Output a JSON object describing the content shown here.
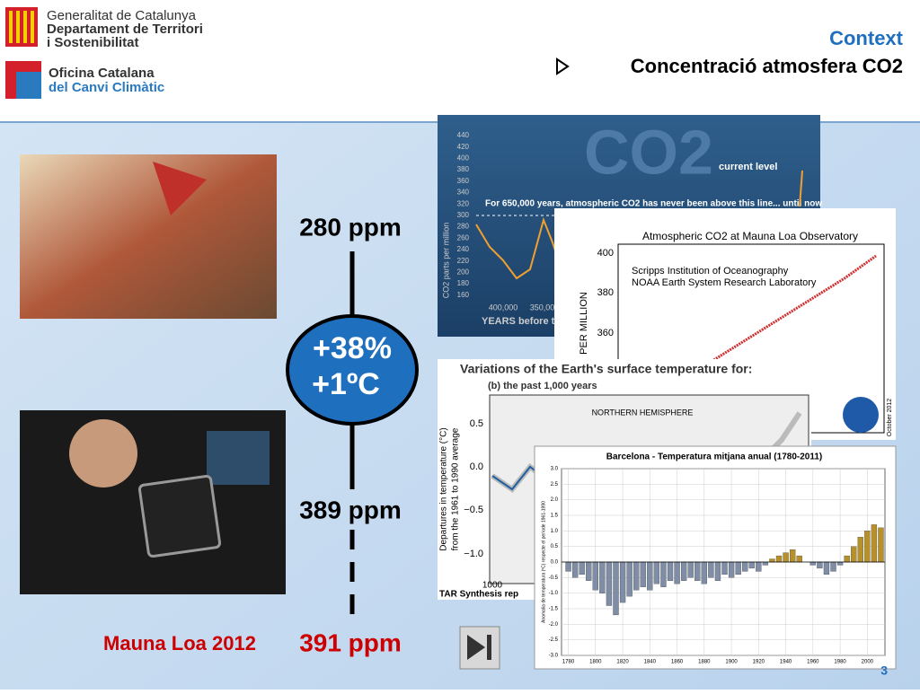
{
  "header": {
    "org1": [
      "Generalitat de Catalunya",
      "Departament de Territori",
      "i Sostenibilitat"
    ],
    "org2": [
      "Oficina Catalana",
      "del Canvi Climàtic"
    ],
    "section": "Context",
    "bullet": "Concentració atmosfera CO2"
  },
  "timeline": {
    "top": "280 ppm",
    "change": [
      "+38%",
      "+1ºC"
    ],
    "middle": "389 ppm",
    "bottom": "391 ppm",
    "caption": "Mauna Loa 2012"
  },
  "page_number": "3",
  "figures": {
    "co2_650k": {
      "title": "CO2",
      "current": "current level",
      "note": "For 650,000 years, atmospheric CO2 has never been above this line... until now",
      "yticks": [
        "440",
        "420",
        "400",
        "380",
        "360",
        "340",
        "320",
        "300",
        "280",
        "260",
        "240",
        "220",
        "200",
        "180",
        "160"
      ],
      "ylabel": "CO2 parts per million",
      "xticks": [
        "400,000",
        "350,000"
      ],
      "xlabel": "YEARS before toda"
    },
    "mauna_loa": {
      "title": "Atmospheric CO2 at Mauna Loa Observatory",
      "sources": [
        "Scripps Institution of Oceanography",
        "NOAA Earth System Research Laboratory"
      ],
      "yticks": [
        "400",
        "380",
        "360"
      ],
      "ylabel": "PER MILLION",
      "date": "October 2012"
    },
    "temp_1000": {
      "title": "Variations of the Earth's surface temperature for:",
      "subtitle": "(b) the past 1,000 years",
      "panel": "NORTHERN HEMISPHERE",
      "yticks": [
        "0.5",
        "0.0",
        "−0.5",
        "−1.0"
      ],
      "ylabel": [
        "Departures in temperature (°C)",
        "from the 1961 to 1990 average"
      ],
      "xticks": [
        "1000"
      ],
      "footer": "TAR Synthesis rep"
    },
    "barcelona": {
      "title": "Barcelona - Temperatura mitjana anual (1780-2011)",
      "ylabel": "Anomalia de temperatura (ºC) respecte el període 1961-1990",
      "ylim": [
        -3,
        3
      ],
      "yticks": [
        {
          "value": 3,
          "label": "3.0"
        },
        2.5,
        {
          "value": 2,
          "label": "2.0"
        },
        1.5,
        {
          "value": 1,
          "label": "1.0"
        },
        0.5,
        {
          "value": 0,
          "label": "0.0"
        },
        -0.5,
        {
          "value": -1,
          "label": "-1.0"
        },
        -1.5,
        {
          "value": -2,
          "label": "-2.0"
        },
        -2.5,
        {
          "value": -3,
          "label": "-3.0"
        }
      ],
      "xlim": [
        1775,
        2013
      ],
      "xticks": [
        1780,
        1800,
        1820,
        1840,
        1860,
        1880,
        1900,
        1920,
        1940,
        1960,
        1980,
        2000
      ],
      "x": [
        1780,
        1785,
        1790,
        1795,
        1800,
        1805,
        1810,
        1815,
        1820,
        1825,
        1830,
        1835,
        1840,
        1845,
        1850,
        1855,
        1860,
        1865,
        1870,
        1875,
        1880,
        1885,
        1890,
        1895,
        1900,
        1905,
        1910,
        1915,
        1920,
        1925,
        1930,
        1935,
        1940,
        1945,
        1950,
        1955,
        1960,
        1965,
        1970,
        1975,
        1980,
        1985,
        1990,
        1995,
        2000,
        2005,
        2010
      ],
      "values": [
        -0.3,
        -0.5,
        -0.4,
        -0.6,
        -0.9,
        -1.0,
        -1.4,
        -1.7,
        -1.3,
        -1.1,
        -0.9,
        -0.8,
        -0.9,
        -0.7,
        -0.8,
        -0.6,
        -0.7,
        -0.6,
        -0.5,
        -0.6,
        -0.7,
        -0.5,
        -0.6,
        -0.4,
        -0.5,
        -0.4,
        -0.3,
        -0.2,
        -0.3,
        -0.1,
        0.1,
        0.2,
        0.3,
        0.4,
        0.2,
        0.0,
        -0.1,
        -0.2,
        -0.4,
        -0.3,
        -0.1,
        0.2,
        0.5,
        0.8,
        1.0,
        1.2,
        1.1
      ],
      "colors": {
        "positive": "#b8902a",
        "negative": "#7f8ea6"
      }
    }
  }
}
